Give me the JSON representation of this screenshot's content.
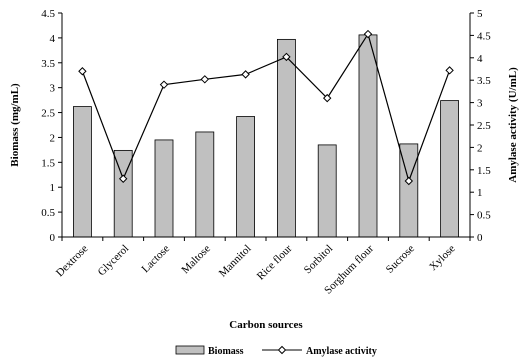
{
  "chart_data": {
    "type": "bar",
    "categories": [
      "Dextrose",
      "Glycerol",
      "Lactose",
      "Maltose",
      "Mannitol",
      "Rice flour",
      "Sorbitol",
      "Sorghum flour",
      "Sucrose",
      "Xylose"
    ],
    "series": [
      {
        "name": "Biomass",
        "type": "bar",
        "axis": "left",
        "color": "#c0c0c0",
        "values": [
          2.62,
          1.74,
          1.95,
          2.11,
          2.42,
          3.97,
          1.85,
          4.06,
          1.87,
          2.74
        ]
      },
      {
        "name": "Amylase activity",
        "type": "line",
        "axis": "right",
        "color": "#000000",
        "marker": "diamond-open",
        "values": [
          3.7,
          1.3,
          3.4,
          3.52,
          3.63,
          4.02,
          3.1,
          4.53,
          1.25,
          3.72
        ]
      }
    ],
    "xlabel": "Carbon sources",
    "ylabel_left": "Biomass (mg/mL)",
    "ylabel_right": "Amylase activity (U/mL)",
    "ylim_left": [
      0,
      4.5
    ],
    "ylim_right": [
      0,
      5
    ],
    "yticks_left": [
      "0",
      "0.5",
      "1",
      "1.5",
      "2",
      "2.5",
      "3",
      "3.5",
      "4",
      "4.5"
    ],
    "yticks_right": [
      "0",
      "0.5",
      "1",
      "1.5",
      "2",
      "2.5",
      "3",
      "3.5",
      "4",
      "4.5",
      "5"
    ],
    "grid": false,
    "legend_position": "bottom"
  }
}
